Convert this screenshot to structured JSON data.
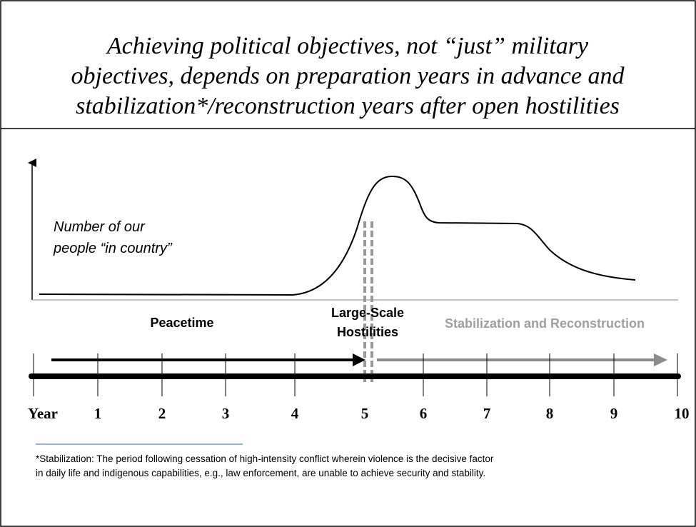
{
  "title_lines": [
    "Achieving political objectives, not “just” military",
    "objectives, depends on preparation years in advance and",
    "stabilization*/reconstruction years after open hostilities"
  ],
  "y_axis_label": [
    "Number of our",
    "people “in country”"
  ],
  "phases": {
    "peacetime": "Peacetime",
    "hostilities": [
      "Large-Scale",
      "Hostilities"
    ],
    "stabilization": "Stabilization and Reconstruction"
  },
  "timeline": {
    "label": "Year",
    "years": [
      "1",
      "2",
      "3",
      "4",
      "5",
      "6",
      "7",
      "8",
      "9",
      "10"
    ]
  },
  "footnote": [
    "*Stabilization: The period following cessation of high-intensity conflict wherein violence is the decisive factor",
    "in daily life and indigenous capabilities, e.g., law enforcement, are unable to achieve security and stability."
  ]
}
